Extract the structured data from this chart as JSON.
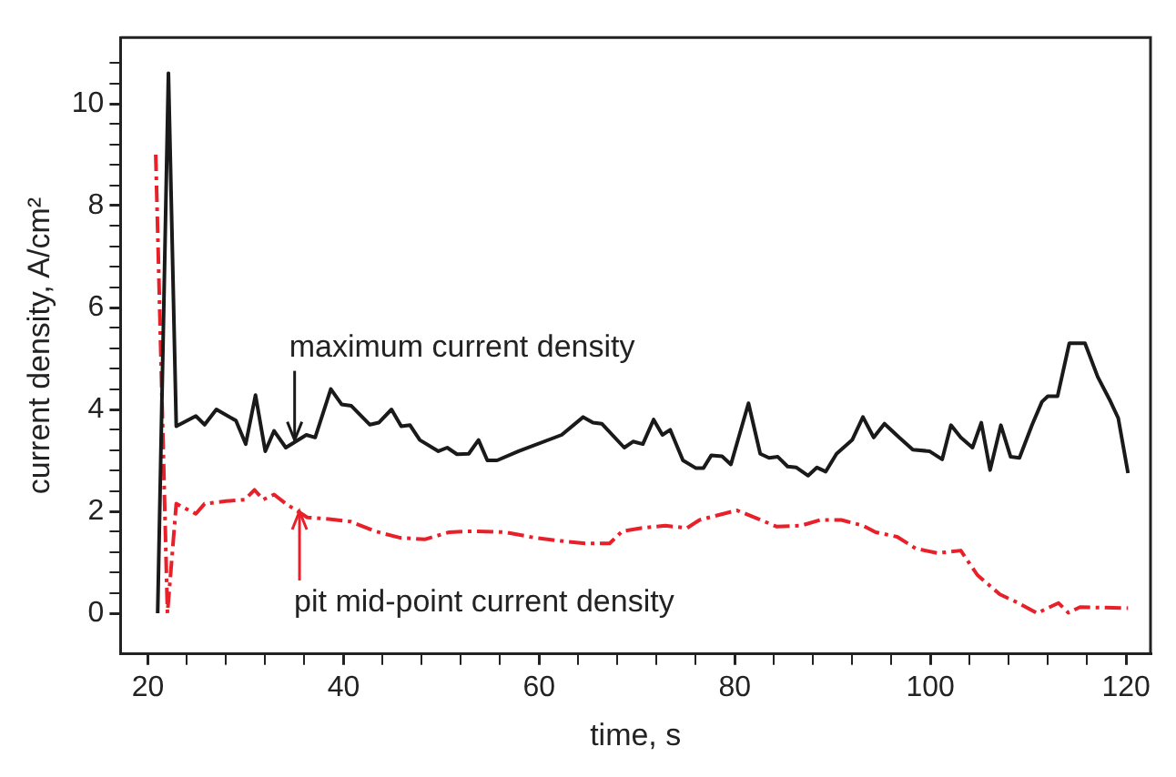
{
  "chart_data": {
    "type": "line",
    "xlabel": "time, s",
    "ylabel": "current density, A/cm²",
    "xlim": [
      17.2,
      122.5
    ],
    "ylim": [
      -0.8,
      11.3
    ],
    "xticks": [
      20,
      {
        "value": 24,
        "label": null
      },
      {
        "value": 28,
        "label": null
      },
      {
        "value": 32,
        "label": null
      },
      {
        "value": 36,
        "label": null
      },
      40,
      {
        "value": 44,
        "label": null
      },
      {
        "value": 48,
        "label": null
      },
      {
        "value": 52,
        "label": null
      },
      {
        "value": 56,
        "label": null
      },
      60,
      {
        "value": 64,
        "label": null
      },
      {
        "value": 68,
        "label": null
      },
      {
        "value": 72,
        "label": null
      },
      {
        "value": 76,
        "label": null
      },
      80,
      {
        "value": 84,
        "label": null
      },
      {
        "value": 88,
        "label": null
      },
      {
        "value": 92,
        "label": null
      },
      {
        "value": 96,
        "label": null
      },
      100,
      {
        "value": 104,
        "label": null
      },
      {
        "value": 108,
        "label": null
      },
      {
        "value": 112,
        "label": null
      },
      {
        "value": 116,
        "label": null
      },
      120
    ],
    "yticks": [
      0,
      {
        "value": 0.4,
        "label": null
      },
      {
        "value": 0.8,
        "label": null
      },
      {
        "value": 1.2,
        "label": null
      },
      {
        "value": 1.6,
        "label": null
      },
      2,
      {
        "value": 2.4,
        "label": null
      },
      {
        "value": 2.8,
        "label": null
      },
      {
        "value": 3.2,
        "label": null
      },
      {
        "value": 3.6,
        "label": null
      },
      4,
      {
        "value": 4.4,
        "label": null
      },
      {
        "value": 4.8,
        "label": null
      },
      {
        "value": 5.2,
        "label": null
      },
      {
        "value": 5.6,
        "label": null
      },
      6,
      {
        "value": 6.4,
        "label": null
      },
      {
        "value": 6.8,
        "label": null
      },
      {
        "value": 7.2,
        "label": null
      },
      {
        "value": 7.6,
        "label": null
      },
      8,
      {
        "value": 8.4,
        "label": null
      },
      {
        "value": 8.8,
        "label": null
      },
      {
        "value": 9.2,
        "label": null
      },
      {
        "value": 9.6,
        "label": null
      },
      10,
      {
        "value": 10.4,
        "label": null
      },
      {
        "value": 10.8,
        "label": null
      }
    ],
    "grid": false,
    "legend": false,
    "marker": "none",
    "annotations": [
      {
        "text": "maximum current density",
        "x": 35,
        "y": 3.4
      },
      {
        "text": "pit mid-point current density",
        "x": 35.5,
        "y": 2.0
      }
    ],
    "series": [
      {
        "color": "#1a1a1a",
        "line_style": "solid",
        "x": [
          21,
          22.1,
          22.9,
          24.9,
          25.8,
          27,
          29,
          30,
          31,
          32,
          32.9,
          34.1,
          36.2,
          37.1,
          38.7,
          39.8,
          40.8,
          42.7,
          43.6,
          44.9,
          45.9,
          46.8,
          47.8,
          49.7,
          50.6,
          51.6,
          52.8,
          53.8,
          54.7,
          55.7,
          57.9,
          62.3,
          64.5,
          65.5,
          66.4,
          68.7,
          69.6,
          70.6,
          71.7,
          72.6,
          73.4,
          74.7,
          76,
          76.8,
          77.6,
          78.7,
          79.6,
          81.4,
          82.6,
          83.5,
          84.4,
          85.4,
          86.3,
          87.5,
          88.4,
          89.3,
          90.4,
          92,
          93.1,
          94.2,
          95.3,
          96.8,
          98.2,
          99.9,
          101.2,
          102.1,
          103.1,
          104.3,
          105.2,
          106.1,
          107.2,
          108.2,
          109.1,
          110.4,
          111.4,
          112,
          113,
          114.2,
          115.8,
          117.1,
          118.4,
          119.2,
          120.2
        ],
        "values": [
          0,
          10.6,
          3.67,
          3.87,
          3.7,
          4.0,
          3.78,
          3.32,
          4.28,
          3.18,
          3.58,
          3.25,
          3.5,
          3.45,
          4.4,
          4.1,
          4.07,
          3.7,
          3.74,
          4.0,
          3.67,
          3.69,
          3.4,
          3.18,
          3.25,
          3.12,
          3.13,
          3.4,
          3.0,
          3.0,
          3.18,
          3.5,
          3.85,
          3.74,
          3.72,
          3.25,
          3.37,
          3.32,
          3.8,
          3.5,
          3.6,
          3.0,
          2.85,
          2.85,
          3.1,
          3.08,
          2.92,
          4.12,
          3.13,
          3.05,
          3.07,
          2.88,
          2.86,
          2.7,
          2.86,
          2.78,
          3.13,
          3.4,
          3.85,
          3.45,
          3.72,
          3.45,
          3.21,
          3.18,
          3.02,
          3.69,
          3.45,
          3.25,
          3.74,
          2.81,
          3.69,
          3.07,
          3.05,
          3.7,
          4.15,
          4.26,
          4.26,
          5.3,
          5.3,
          4.64,
          4.16,
          3.83,
          2.75
        ]
      },
      {
        "color": "#e8202a",
        "line_style": "dashed",
        "x": [
          20.8,
          22,
          22.9,
          24.9,
          25.8,
          28,
          29.9,
          30.9,
          31.8,
          32.9,
          34.1,
          36.3,
          38.5,
          40.7,
          43.2,
          45.8,
          48.3,
          50.8,
          53.3,
          56.5,
          59.6,
          62.2,
          64.7,
          67.2,
          68.5,
          70.4,
          72.9,
          75.1,
          76.4,
          80.2,
          82.4,
          84.3,
          86.8,
          88.7,
          90.9,
          93.1,
          94.4,
          96.6,
          98.5,
          100.7,
          103.1,
          104.8,
          107.1,
          109,
          110.9,
          112.2,
          113.1,
          114.1,
          115.3,
          120.2
        ],
        "values": [
          9.0,
          0,
          2.15,
          1.95,
          2.15,
          2.2,
          2.23,
          2.42,
          2.23,
          2.33,
          2.15,
          1.88,
          1.85,
          1.8,
          1.61,
          1.48,
          1.45,
          1.59,
          1.61,
          1.59,
          1.48,
          1.42,
          1.37,
          1.37,
          1.61,
          1.67,
          1.72,
          1.67,
          1.83,
          2.02,
          1.85,
          1.7,
          1.72,
          1.83,
          1.83,
          1.72,
          1.59,
          1.5,
          1.27,
          1.18,
          1.23,
          0.75,
          0.37,
          0.2,
          0,
          0.12,
          0.2,
          0.01,
          0.12,
          0.1
        ]
      }
    ]
  }
}
